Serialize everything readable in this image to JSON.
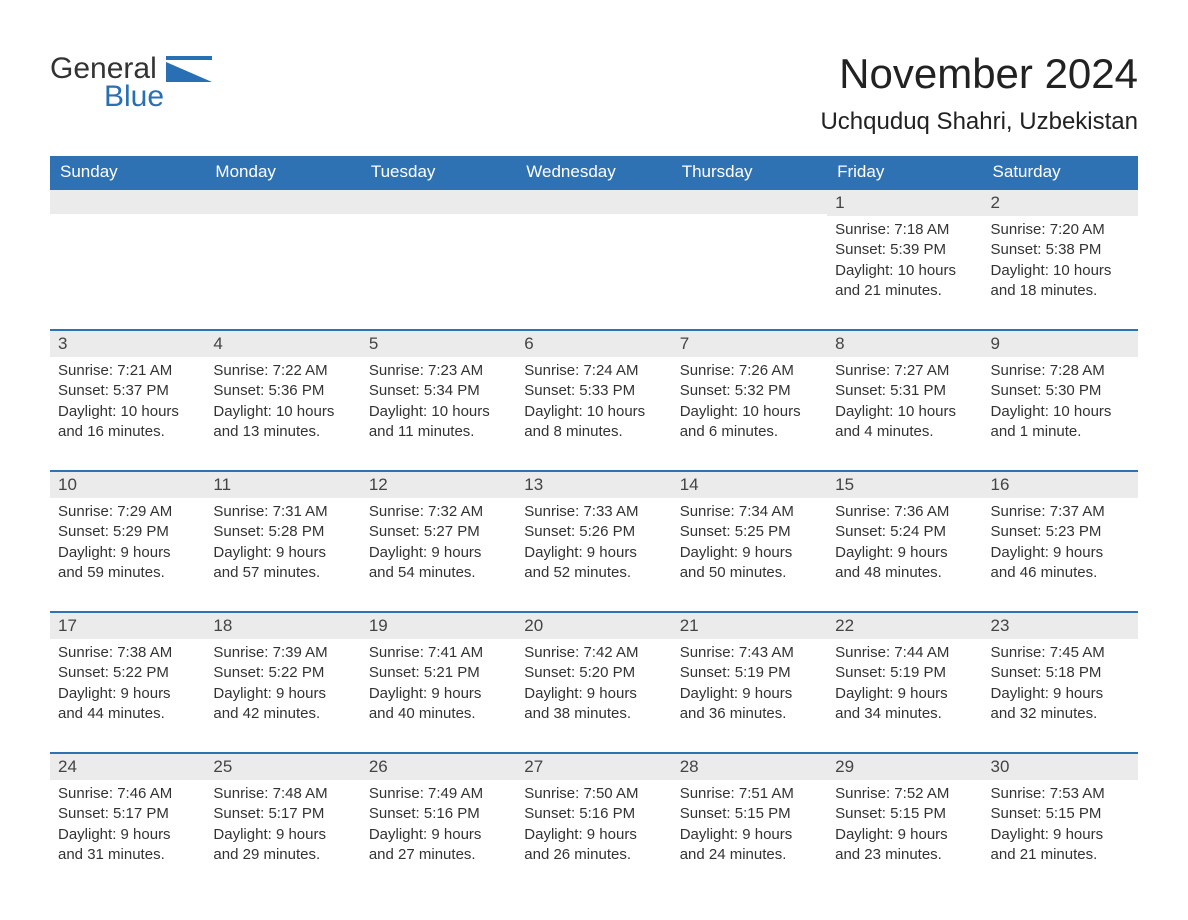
{
  "logo": {
    "text1": "General",
    "text2": "Blue",
    "shape_color": "#286fb4"
  },
  "title": "November 2024",
  "location": "Uchquduq Shahri, Uzbekistan",
  "colors": {
    "header_bg": "#2f72b4",
    "header_text": "#ffffff",
    "datebar_bg": "#ebebeb",
    "datebar_border": "#2f72b4",
    "body_text": "#333333"
  },
  "day_headers": [
    "Sunday",
    "Monday",
    "Tuesday",
    "Wednesday",
    "Thursday",
    "Friday",
    "Saturday"
  ],
  "weeks": [
    [
      null,
      null,
      null,
      null,
      null,
      {
        "date": "1",
        "sunrise": "Sunrise: 7:18 AM",
        "sunset": "Sunset: 5:39 PM",
        "day1": "Daylight: 10 hours",
        "day2": "and 21 minutes."
      },
      {
        "date": "2",
        "sunrise": "Sunrise: 7:20 AM",
        "sunset": "Sunset: 5:38 PM",
        "day1": "Daylight: 10 hours",
        "day2": "and 18 minutes."
      }
    ],
    [
      {
        "date": "3",
        "sunrise": "Sunrise: 7:21 AM",
        "sunset": "Sunset: 5:37 PM",
        "day1": "Daylight: 10 hours",
        "day2": "and 16 minutes."
      },
      {
        "date": "4",
        "sunrise": "Sunrise: 7:22 AM",
        "sunset": "Sunset: 5:36 PM",
        "day1": "Daylight: 10 hours",
        "day2": "and 13 minutes."
      },
      {
        "date": "5",
        "sunrise": "Sunrise: 7:23 AM",
        "sunset": "Sunset: 5:34 PM",
        "day1": "Daylight: 10 hours",
        "day2": "and 11 minutes."
      },
      {
        "date": "6",
        "sunrise": "Sunrise: 7:24 AM",
        "sunset": "Sunset: 5:33 PM",
        "day1": "Daylight: 10 hours",
        "day2": "and 8 minutes."
      },
      {
        "date": "7",
        "sunrise": "Sunrise: 7:26 AM",
        "sunset": "Sunset: 5:32 PM",
        "day1": "Daylight: 10 hours",
        "day2": "and 6 minutes."
      },
      {
        "date": "8",
        "sunrise": "Sunrise: 7:27 AM",
        "sunset": "Sunset: 5:31 PM",
        "day1": "Daylight: 10 hours",
        "day2": "and 4 minutes."
      },
      {
        "date": "9",
        "sunrise": "Sunrise: 7:28 AM",
        "sunset": "Sunset: 5:30 PM",
        "day1": "Daylight: 10 hours",
        "day2": "and 1 minute."
      }
    ],
    [
      {
        "date": "10",
        "sunrise": "Sunrise: 7:29 AM",
        "sunset": "Sunset: 5:29 PM",
        "day1": "Daylight: 9 hours",
        "day2": "and 59 minutes."
      },
      {
        "date": "11",
        "sunrise": "Sunrise: 7:31 AM",
        "sunset": "Sunset: 5:28 PM",
        "day1": "Daylight: 9 hours",
        "day2": "and 57 minutes."
      },
      {
        "date": "12",
        "sunrise": "Sunrise: 7:32 AM",
        "sunset": "Sunset: 5:27 PM",
        "day1": "Daylight: 9 hours",
        "day2": "and 54 minutes."
      },
      {
        "date": "13",
        "sunrise": "Sunrise: 7:33 AM",
        "sunset": "Sunset: 5:26 PM",
        "day1": "Daylight: 9 hours",
        "day2": "and 52 minutes."
      },
      {
        "date": "14",
        "sunrise": "Sunrise: 7:34 AM",
        "sunset": "Sunset: 5:25 PM",
        "day1": "Daylight: 9 hours",
        "day2": "and 50 minutes."
      },
      {
        "date": "15",
        "sunrise": "Sunrise: 7:36 AM",
        "sunset": "Sunset: 5:24 PM",
        "day1": "Daylight: 9 hours",
        "day2": "and 48 minutes."
      },
      {
        "date": "16",
        "sunrise": "Sunrise: 7:37 AM",
        "sunset": "Sunset: 5:23 PM",
        "day1": "Daylight: 9 hours",
        "day2": "and 46 minutes."
      }
    ],
    [
      {
        "date": "17",
        "sunrise": "Sunrise: 7:38 AM",
        "sunset": "Sunset: 5:22 PM",
        "day1": "Daylight: 9 hours",
        "day2": "and 44 minutes."
      },
      {
        "date": "18",
        "sunrise": "Sunrise: 7:39 AM",
        "sunset": "Sunset: 5:22 PM",
        "day1": "Daylight: 9 hours",
        "day2": "and 42 minutes."
      },
      {
        "date": "19",
        "sunrise": "Sunrise: 7:41 AM",
        "sunset": "Sunset: 5:21 PM",
        "day1": "Daylight: 9 hours",
        "day2": "and 40 minutes."
      },
      {
        "date": "20",
        "sunrise": "Sunrise: 7:42 AM",
        "sunset": "Sunset: 5:20 PM",
        "day1": "Daylight: 9 hours",
        "day2": "and 38 minutes."
      },
      {
        "date": "21",
        "sunrise": "Sunrise: 7:43 AM",
        "sunset": "Sunset: 5:19 PM",
        "day1": "Daylight: 9 hours",
        "day2": "and 36 minutes."
      },
      {
        "date": "22",
        "sunrise": "Sunrise: 7:44 AM",
        "sunset": "Sunset: 5:19 PM",
        "day1": "Daylight: 9 hours",
        "day2": "and 34 minutes."
      },
      {
        "date": "23",
        "sunrise": "Sunrise: 7:45 AM",
        "sunset": "Sunset: 5:18 PM",
        "day1": "Daylight: 9 hours",
        "day2": "and 32 minutes."
      }
    ],
    [
      {
        "date": "24",
        "sunrise": "Sunrise: 7:46 AM",
        "sunset": "Sunset: 5:17 PM",
        "day1": "Daylight: 9 hours",
        "day2": "and 31 minutes."
      },
      {
        "date": "25",
        "sunrise": "Sunrise: 7:48 AM",
        "sunset": "Sunset: 5:17 PM",
        "day1": "Daylight: 9 hours",
        "day2": "and 29 minutes."
      },
      {
        "date": "26",
        "sunrise": "Sunrise: 7:49 AM",
        "sunset": "Sunset: 5:16 PM",
        "day1": "Daylight: 9 hours",
        "day2": "and 27 minutes."
      },
      {
        "date": "27",
        "sunrise": "Sunrise: 7:50 AM",
        "sunset": "Sunset: 5:16 PM",
        "day1": "Daylight: 9 hours",
        "day2": "and 26 minutes."
      },
      {
        "date": "28",
        "sunrise": "Sunrise: 7:51 AM",
        "sunset": "Sunset: 5:15 PM",
        "day1": "Daylight: 9 hours",
        "day2": "and 24 minutes."
      },
      {
        "date": "29",
        "sunrise": "Sunrise: 7:52 AM",
        "sunset": "Sunset: 5:15 PM",
        "day1": "Daylight: 9 hours",
        "day2": "and 23 minutes."
      },
      {
        "date": "30",
        "sunrise": "Sunrise: 7:53 AM",
        "sunset": "Sunset: 5:15 PM",
        "day1": "Daylight: 9 hours",
        "day2": "and 21 minutes."
      }
    ]
  ]
}
